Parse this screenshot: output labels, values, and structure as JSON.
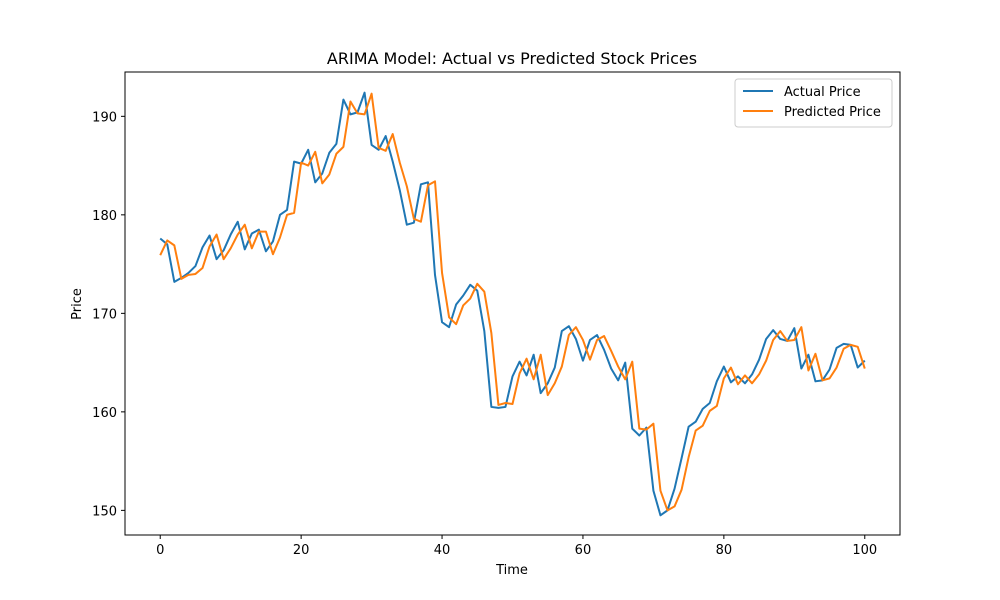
{
  "chart_data": {
    "type": "line",
    "title": "ARIMA Model: Actual vs Predicted Stock Prices",
    "xlabel": "Time",
    "ylabel": "Price",
    "xlim": [
      -5,
      105
    ],
    "ylim": [
      147.5,
      194.5
    ],
    "xticks": [
      0,
      20,
      40,
      60,
      80,
      100
    ],
    "yticks": [
      150,
      160,
      170,
      180,
      190
    ],
    "grid": false,
    "legend_position": "top-right",
    "series": [
      {
        "name": "Actual Price",
        "color": "#1f77b4",
        "x": [
          0,
          1,
          2,
          3,
          4,
          5,
          6,
          7,
          8,
          9,
          10,
          11,
          12,
          13,
          14,
          15,
          16,
          17,
          18,
          19,
          20,
          21,
          22,
          23,
          24,
          25,
          26,
          27,
          28,
          29,
          30,
          31,
          32,
          33,
          34,
          35,
          36,
          37,
          38,
          39,
          40,
          41,
          42,
          43,
          44,
          45,
          46,
          47,
          48,
          49,
          50,
          51,
          52,
          53,
          54,
          55,
          56,
          57,
          58,
          59,
          60,
          61,
          62,
          63,
          64,
          65,
          66,
          67,
          68,
          69,
          70,
          71,
          72,
          73,
          74,
          75,
          76,
          77,
          78,
          79,
          80,
          81,
          82,
          83,
          84,
          85,
          86,
          87,
          88,
          89,
          90,
          91,
          92,
          93,
          94,
          95,
          96,
          97,
          98,
          99,
          100
        ],
        "values": [
          177.6,
          177.0,
          173.2,
          173.6,
          174.1,
          174.8,
          176.7,
          177.9,
          175.5,
          176.4,
          178.0,
          179.3,
          176.5,
          178.1,
          178.5,
          176.3,
          177.3,
          180.0,
          180.5,
          185.4,
          185.2,
          186.6,
          183.3,
          184.2,
          186.3,
          187.2,
          191.7,
          190.2,
          190.4,
          192.4,
          187.1,
          186.6,
          188.0,
          185.4,
          182.5,
          179.0,
          179.2,
          183.1,
          183.3,
          173.9,
          169.1,
          168.6,
          170.9,
          171.8,
          172.9,
          172.3,
          168.2,
          160.5,
          160.4,
          160.5,
          163.6,
          165.1,
          163.7,
          165.8,
          161.9,
          162.9,
          164.5,
          168.2,
          168.7,
          167.4,
          165.2,
          167.3,
          167.8,
          166.3,
          164.4,
          163.2,
          165.0,
          158.3,
          157.6,
          158.4,
          152.0,
          149.5,
          150.0,
          152.2,
          155.3,
          158.5,
          159.0,
          160.3,
          160.9,
          163.1,
          164.6,
          163.0,
          163.6,
          162.9,
          163.8,
          165.3,
          167.4,
          168.3,
          167.4,
          167.2,
          168.5,
          164.4,
          165.8,
          163.1,
          163.2,
          164.3,
          166.5,
          166.9,
          166.8,
          164.5,
          165.2
        ]
      },
      {
        "name": "Predicted Price",
        "color": "#ff7f0e",
        "x": [
          0,
          1,
          2,
          3,
          4,
          5,
          6,
          7,
          8,
          9,
          10,
          11,
          12,
          13,
          14,
          15,
          16,
          17,
          18,
          19,
          20,
          21,
          22,
          23,
          24,
          25,
          26,
          27,
          28,
          29,
          30,
          31,
          32,
          33,
          34,
          35,
          36,
          37,
          38,
          39,
          40,
          41,
          42,
          43,
          44,
          45,
          46,
          47,
          48,
          49,
          50,
          51,
          52,
          53,
          54,
          55,
          56,
          57,
          58,
          59,
          60,
          61,
          62,
          63,
          64,
          65,
          66,
          67,
          68,
          69,
          70,
          71,
          72,
          73,
          74,
          75,
          76,
          77,
          78,
          79,
          80,
          81,
          82,
          83,
          84,
          85,
          86,
          87,
          88,
          89,
          90,
          91,
          92,
          93,
          94,
          95,
          96,
          97,
          98,
          99,
          100
        ],
        "values": [
          175.9,
          177.4,
          176.9,
          173.5,
          173.9,
          174.0,
          174.6,
          176.8,
          178.0,
          175.5,
          176.6,
          178.0,
          179.0,
          176.6,
          178.3,
          178.3,
          176.0,
          177.7,
          180.0,
          180.2,
          185.3,
          185.0,
          186.4,
          183.2,
          184.1,
          186.2,
          186.9,
          191.5,
          190.3,
          190.2,
          192.3,
          186.8,
          186.5,
          188.2,
          185.3,
          182.9,
          179.6,
          179.3,
          183.0,
          183.4,
          174.1,
          169.6,
          168.9,
          170.8,
          171.5,
          173.0,
          172.2,
          168.0,
          160.7,
          160.9,
          160.8,
          163.9,
          165.4,
          163.3,
          165.8,
          161.7,
          162.9,
          164.6,
          167.8,
          168.6,
          167.3,
          165.3,
          167.3,
          167.7,
          166.2,
          164.6,
          163.3,
          165.1,
          158.3,
          158.2,
          158.8,
          152.0,
          150.0,
          150.4,
          152.1,
          155.4,
          158.1,
          158.6,
          160.1,
          160.6,
          163.4,
          164.5,
          162.8,
          163.7,
          162.9,
          163.8,
          165.2,
          167.3,
          168.2,
          167.2,
          167.3,
          168.6,
          164.2,
          165.9,
          163.2,
          163.4,
          164.5,
          166.4,
          166.8,
          166.6,
          164.4
        ]
      }
    ]
  }
}
